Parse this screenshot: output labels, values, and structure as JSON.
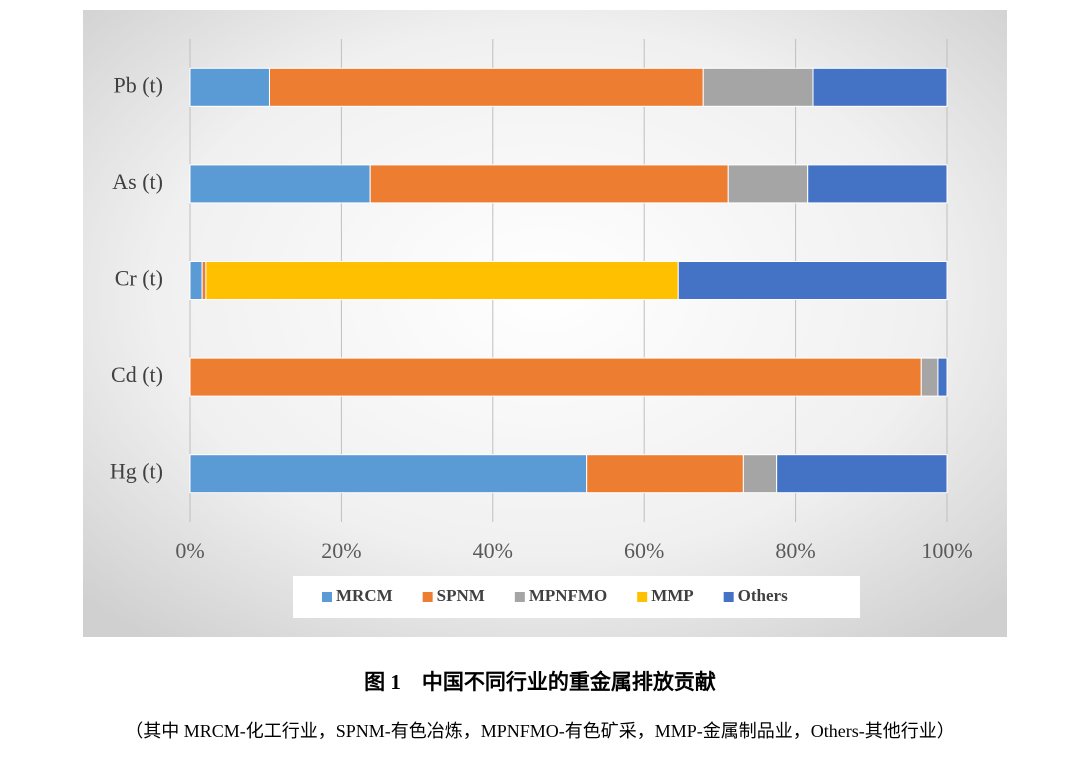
{
  "chart_data": {
    "type": "stacked-bar-horizontal",
    "title": "图 1　中国不同行业的重金属排放贡献",
    "subtitle": "（其中 MRCM-化工行业，SPNM-有色冶炼，MPNFMO-有色矿采，MMP-金属制品业，Others-其他行业）",
    "categories": [
      "Pb (t)",
      "As (t)",
      "Cr (t)",
      "Cd (t)",
      "Hg (t)"
    ],
    "series": [
      {
        "name": "MRCM",
        "color": "#5b9bd5",
        "values": [
          10.5,
          23.8,
          1.6,
          0,
          52.4
        ]
      },
      {
        "name": "SPNM",
        "color": "#ed7d31",
        "values": [
          57.3,
          47.3,
          0.5,
          96.6,
          20.7
        ]
      },
      {
        "name": "MPNFMO",
        "color": "#a5a5a5",
        "values": [
          14.5,
          10.5,
          0,
          2.2,
          4.4
        ]
      },
      {
        "name": "MMP",
        "color": "#ffc000",
        "values": [
          0,
          0,
          62.4,
          0,
          0
        ]
      },
      {
        "name": "Others",
        "color": "#4472c4",
        "values": [
          17.7,
          18.4,
          35.5,
          1.2,
          22.5
        ]
      }
    ],
    "xlim": [
      0,
      100
    ],
    "xticks": [
      {
        "value": 0,
        "label": "0%"
      },
      {
        "value": 20,
        "label": "20%"
      },
      {
        "value": 40,
        "label": "40%"
      },
      {
        "value": 60,
        "label": "60%"
      },
      {
        "value": 80,
        "label": "80%"
      },
      {
        "value": 100,
        "label": "100%"
      }
    ],
    "grid": true,
    "legend": "bottom"
  }
}
